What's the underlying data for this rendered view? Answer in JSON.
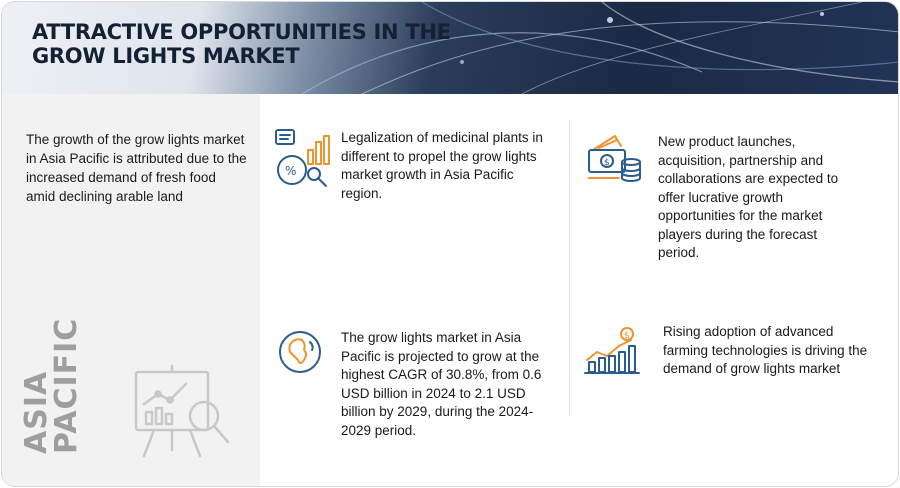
{
  "banner": {
    "title": "ATTRACTIVE OPPORTUNITIES IN THE GROW LIGHTS MARKET"
  },
  "left": {
    "description": "The growth of the grow lights market in Asia Pacific is attributed due to the increased demand of fresh food amid declining arable land",
    "region_line1": "ASIA",
    "region_line2": "PACIFIC"
  },
  "items": [
    {
      "icon": "analytics-report-icon",
      "text": "Legalization of medicinal plants in different to propel the grow lights market growth in Asia Pacific region."
    },
    {
      "icon": "money-coins-icon",
      "text": "New product launches, acquisition, partnership and collaborations are expected to offer lucrative growth opportunities for the market players during the forecast period."
    },
    {
      "icon": "globe-icon",
      "text": "The grow lights market in Asia Pacific is projected to grow at the highest CAGR of 30.8%, from 0.6 USD billion in 2024 to 2.1 USD  billion by 2029, during the 2024- 2029 period."
    },
    {
      "icon": "growth-chart-icon",
      "text": "Rising adoption of advanced farming technologies is driving the demand of grow lights market"
    }
  ],
  "colors": {
    "accent_orange": "#f0932b",
    "icon_blue": "#2a5d8f",
    "banner_dark": "#1a2a45"
  }
}
